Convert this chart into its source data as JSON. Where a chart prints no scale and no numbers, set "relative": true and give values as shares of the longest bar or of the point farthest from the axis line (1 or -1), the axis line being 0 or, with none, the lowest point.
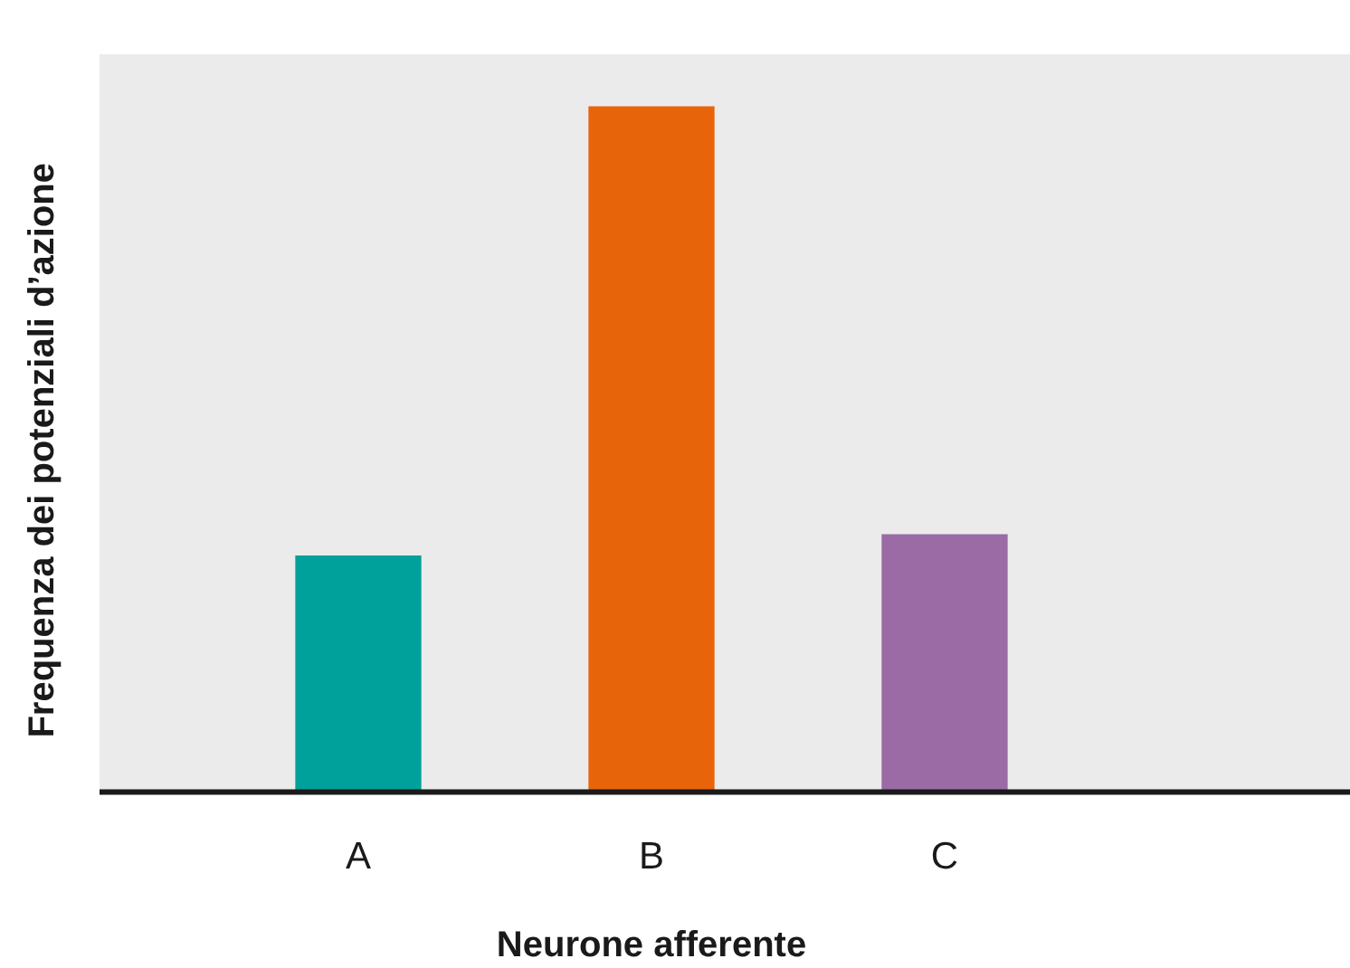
{
  "chart_data": {
    "type": "bar",
    "relative": true,
    "xlabel": "Neurone afferente",
    "ylabel": "Frequenza dei potenziali d’azione",
    "categories": [
      "A",
      "B",
      "C"
    ],
    "values": [
      0.345,
      1,
      0.376
    ],
    "colors": [
      "#00a19b",
      "#e8640a",
      "#9b6ba5"
    ],
    "legend": false
  }
}
